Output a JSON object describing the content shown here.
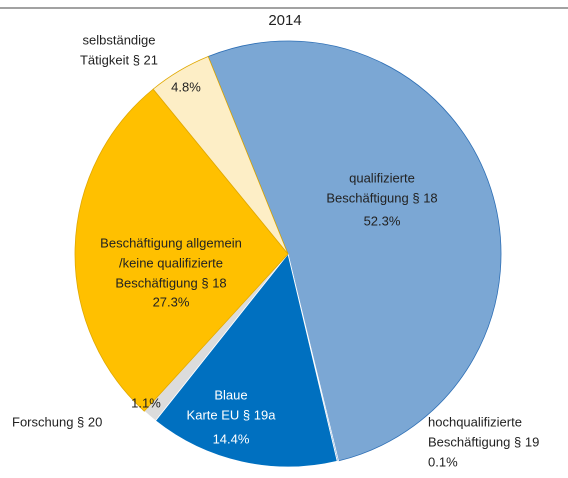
{
  "chart_data": {
    "type": "pie",
    "title": "2014",
    "categories": [
      [
        "qualifizierte",
        "Beschäftigung § 18"
      ],
      [
        "hochqualifizierte",
        "Beschäftigung § 19"
      ],
      [
        "Blaue",
        "Karte EU § 19a"
      ],
      [
        "Forschung § 20"
      ],
      [
        "Beschäftigung allgemein",
        "/keine qualifizierte",
        "Beschäftigung § 18"
      ],
      [
        "selbständige",
        "Tätigkeit § 21"
      ]
    ],
    "values": [
      52.3,
      0.1,
      14.4,
      1.1,
      27.3,
      4.8
    ],
    "value_labels": [
      "52.3%",
      "0.1%",
      "14.4%",
      "1.1%",
      "27.3%",
      "4.8%"
    ],
    "colors": [
      "#7ba7d4",
      "#5b8fc9",
      "#0070c0",
      "#dcdcdc",
      "#ffc000",
      "#fdeec6"
    ]
  }
}
